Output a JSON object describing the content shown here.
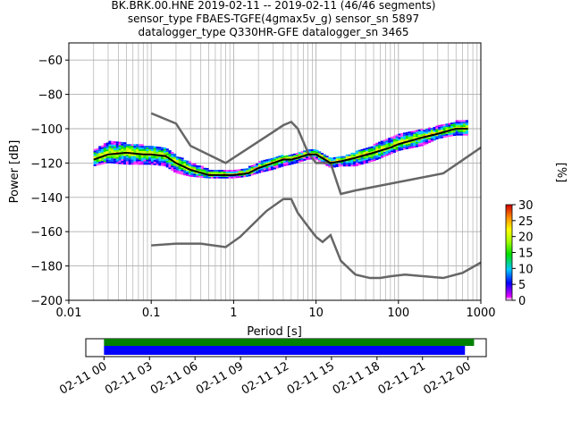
{
  "title_lines": [
    "BK.BRK.00.HNE   2019-02-11 -- 2019-02-11  (46/46 segments)",
    "sensor_type FBAES-TGFE(4gmax5v_g) sensor_sn 5897",
    "datalogger_type Q330HR-GFE datalogger_sn 3465"
  ],
  "chart_data": [
    {
      "type": "heatmap",
      "xlabel": "Period [s]",
      "ylabel": "Power [dB]",
      "x_scale": "log",
      "xlim": [
        0.01,
        1000
      ],
      "ylim": [
        -200,
        -50
      ],
      "grid": true,
      "x_ticks": [
        {
          "value": 0.01,
          "label": "0.01"
        },
        {
          "value": 0.1,
          "label": "0.1"
        },
        {
          "value": 1,
          "label": "1"
        },
        {
          "value": 10,
          "label": "10"
        },
        {
          "value": 100,
          "label": "100"
        },
        {
          "value": 1000,
          "label": "1000"
        }
      ],
      "y_ticks": [
        {
          "value": -60,
          "label": "−60"
        },
        {
          "value": -80,
          "label": "−80"
        },
        {
          "value": -100,
          "label": "−100"
        },
        {
          "value": -120,
          "label": "−120"
        },
        {
          "value": -140,
          "label": "−140"
        },
        {
          "value": -160,
          "label": "−160"
        },
        {
          "value": -180,
          "label": "−180"
        },
        {
          "value": -200,
          "label": "−200"
        }
      ],
      "psd_band": {
        "period": [
          0.02,
          0.03,
          0.05,
          0.08,
          0.1,
          0.15,
          0.2,
          0.3,
          0.5,
          0.8,
          1,
          1.5,
          2,
          3,
          4,
          5,
          6,
          8,
          10,
          15,
          20,
          30,
          50,
          80,
          100,
          200,
          300,
          500,
          700
        ],
        "upper_db": [
          -113,
          -108,
          -109,
          -110,
          -111,
          -112,
          -116,
          -120,
          -124,
          -125,
          -125,
          -123,
          -120,
          -117,
          -116,
          -116,
          -115,
          -113,
          -113,
          -117,
          -117,
          -114,
          -110,
          -106,
          -104,
          -101,
          -99,
          -96,
          -95
        ],
        "lower_db": [
          -122,
          -120,
          -121,
          -121,
          -121,
          -122,
          -126,
          -128,
          -129,
          -129,
          -129,
          -128,
          -126,
          -124,
          -122,
          -121,
          -120,
          -118,
          -118,
          -123,
          -122,
          -122,
          -119,
          -115,
          -113,
          -110,
          -106,
          -104,
          -104
        ]
      },
      "mean_curve": {
        "period": [
          0.02,
          0.03,
          0.05,
          0.08,
          0.1,
          0.15,
          0.2,
          0.3,
          0.5,
          0.8,
          1,
          1.5,
          2,
          3,
          4,
          5,
          6,
          8,
          10,
          15,
          20,
          30,
          50,
          80,
          100,
          200,
          300,
          500,
          700
        ],
        "power_db": [
          -118,
          -115,
          -114,
          -115,
          -115,
          -116,
          -120,
          -124,
          -127,
          -127,
          -127,
          -126,
          -123,
          -120,
          -118,
          -118,
          -117,
          -115,
          -115,
          -120,
          -119,
          -117,
          -114,
          -111,
          -109,
          -105,
          -103,
          -100,
          -100
        ]
      },
      "reference_models": [
        {
          "period": [
            0.1,
            0.2,
            0.3,
            0.8,
            3,
            4,
            5,
            6,
            8,
            10,
            15,
            20,
            30,
            350,
            1000
          ],
          "power_db": [
            -91,
            -97,
            -110,
            -120,
            -102,
            -98,
            -96,
            -100,
            -114,
            -120,
            -120,
            -138,
            -136,
            -126,
            -111
          ]
        },
        {
          "period": [
            0.1,
            0.2,
            0.4,
            0.8,
            1.2,
            2.5,
            4,
            5,
            6,
            8,
            10,
            12,
            15,
            20,
            30,
            45,
            60,
            80,
            120,
            350,
            600,
            1000
          ],
          "power_db": [
            -168,
            -167,
            -167,
            -169,
            -163,
            -148,
            -141,
            -141,
            -149,
            -157,
            -163,
            -166,
            -162,
            -177,
            -185,
            -187,
            -187,
            -186,
            -185,
            -187,
            -184,
            -178
          ]
        }
      ],
      "colorbar": {
        "label": "[%]",
        "min": 0,
        "max": 30,
        "ticks": [
          "0",
          "5",
          "10",
          "15",
          "20",
          "25",
          "30"
        ]
      }
    },
    {
      "type": "bar",
      "description_free": true,
      "x_ticks": [
        "02-11 00",
        "02-11 03",
        "02-11 06",
        "02-11 09",
        "02-11 12",
        "02-11 15",
        "02-11 18",
        "02-11 21",
        "02-12 00"
      ],
      "xlim_hours": [
        -1.2,
        25.2
      ],
      "bars": [
        {
          "color": "#008000",
          "start_hour": 0,
          "end_hour": 24.4
        },
        {
          "color": "#0000ff",
          "start_hour": 0,
          "end_hour": 23.8
        }
      ]
    }
  ]
}
